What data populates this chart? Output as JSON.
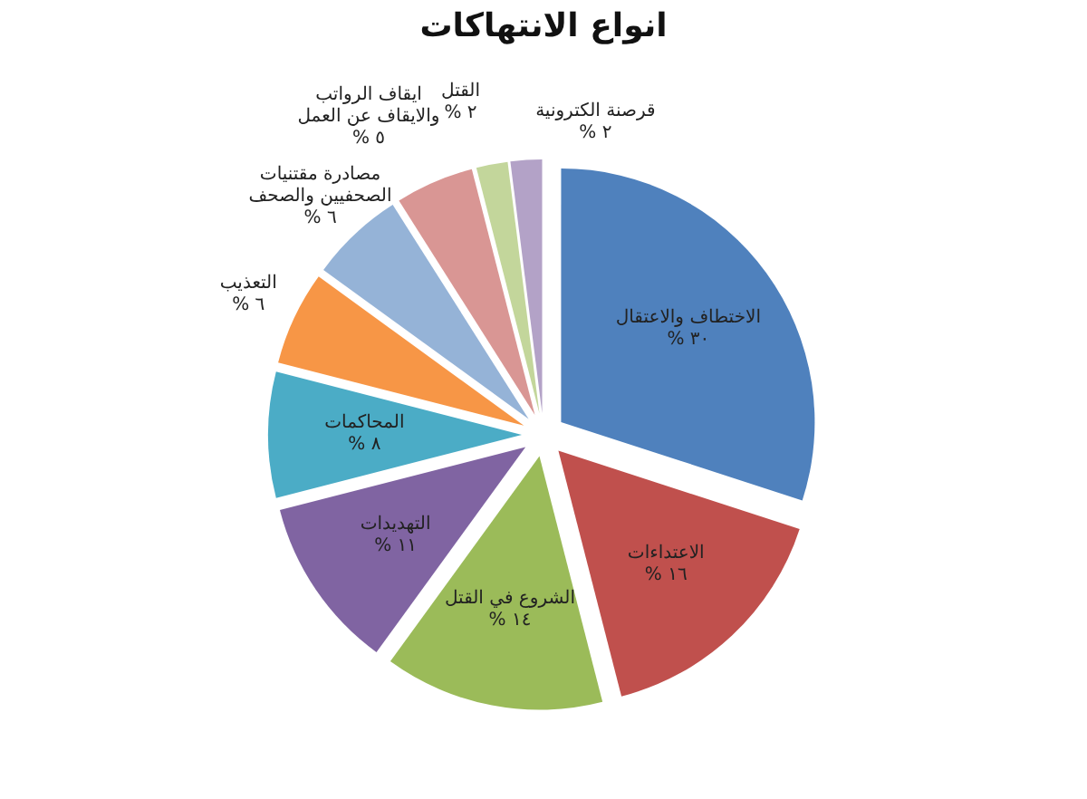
{
  "chart_data": {
    "type": "pie",
    "title": "انواع الانتهاكات",
    "categories": [
      "الاختطاف والاعتقال",
      "الاعتداءات",
      "الشروع في القتل",
      "التهديدات",
      "المحاكمات",
      "التعذيب",
      "مصادرة مقتنيات الصحفيين والصحف",
      "ايقاف الرواتب والايقاف عن العمل",
      "القتل",
      "قرصنة الكترونية"
    ],
    "values": [
      30,
      16,
      14,
      11,
      8,
      6,
      6,
      5,
      2,
      2
    ],
    "value_labels": [
      "٣٠ %",
      "١٦ %",
      "١٤ %",
      "١١ %",
      "٨ %",
      "٦ %",
      "٦ %",
      "٥ %",
      "٢ %",
      "٢ %"
    ],
    "colors": [
      "#4f81bd",
      "#c0504d",
      "#9bbb59",
      "#8064a2",
      "#4bacc6",
      "#f79646",
      "#95b3d7",
      "#d99694",
      "#c3d69b",
      "#b3a2c7"
    ],
    "legend": false
  }
}
